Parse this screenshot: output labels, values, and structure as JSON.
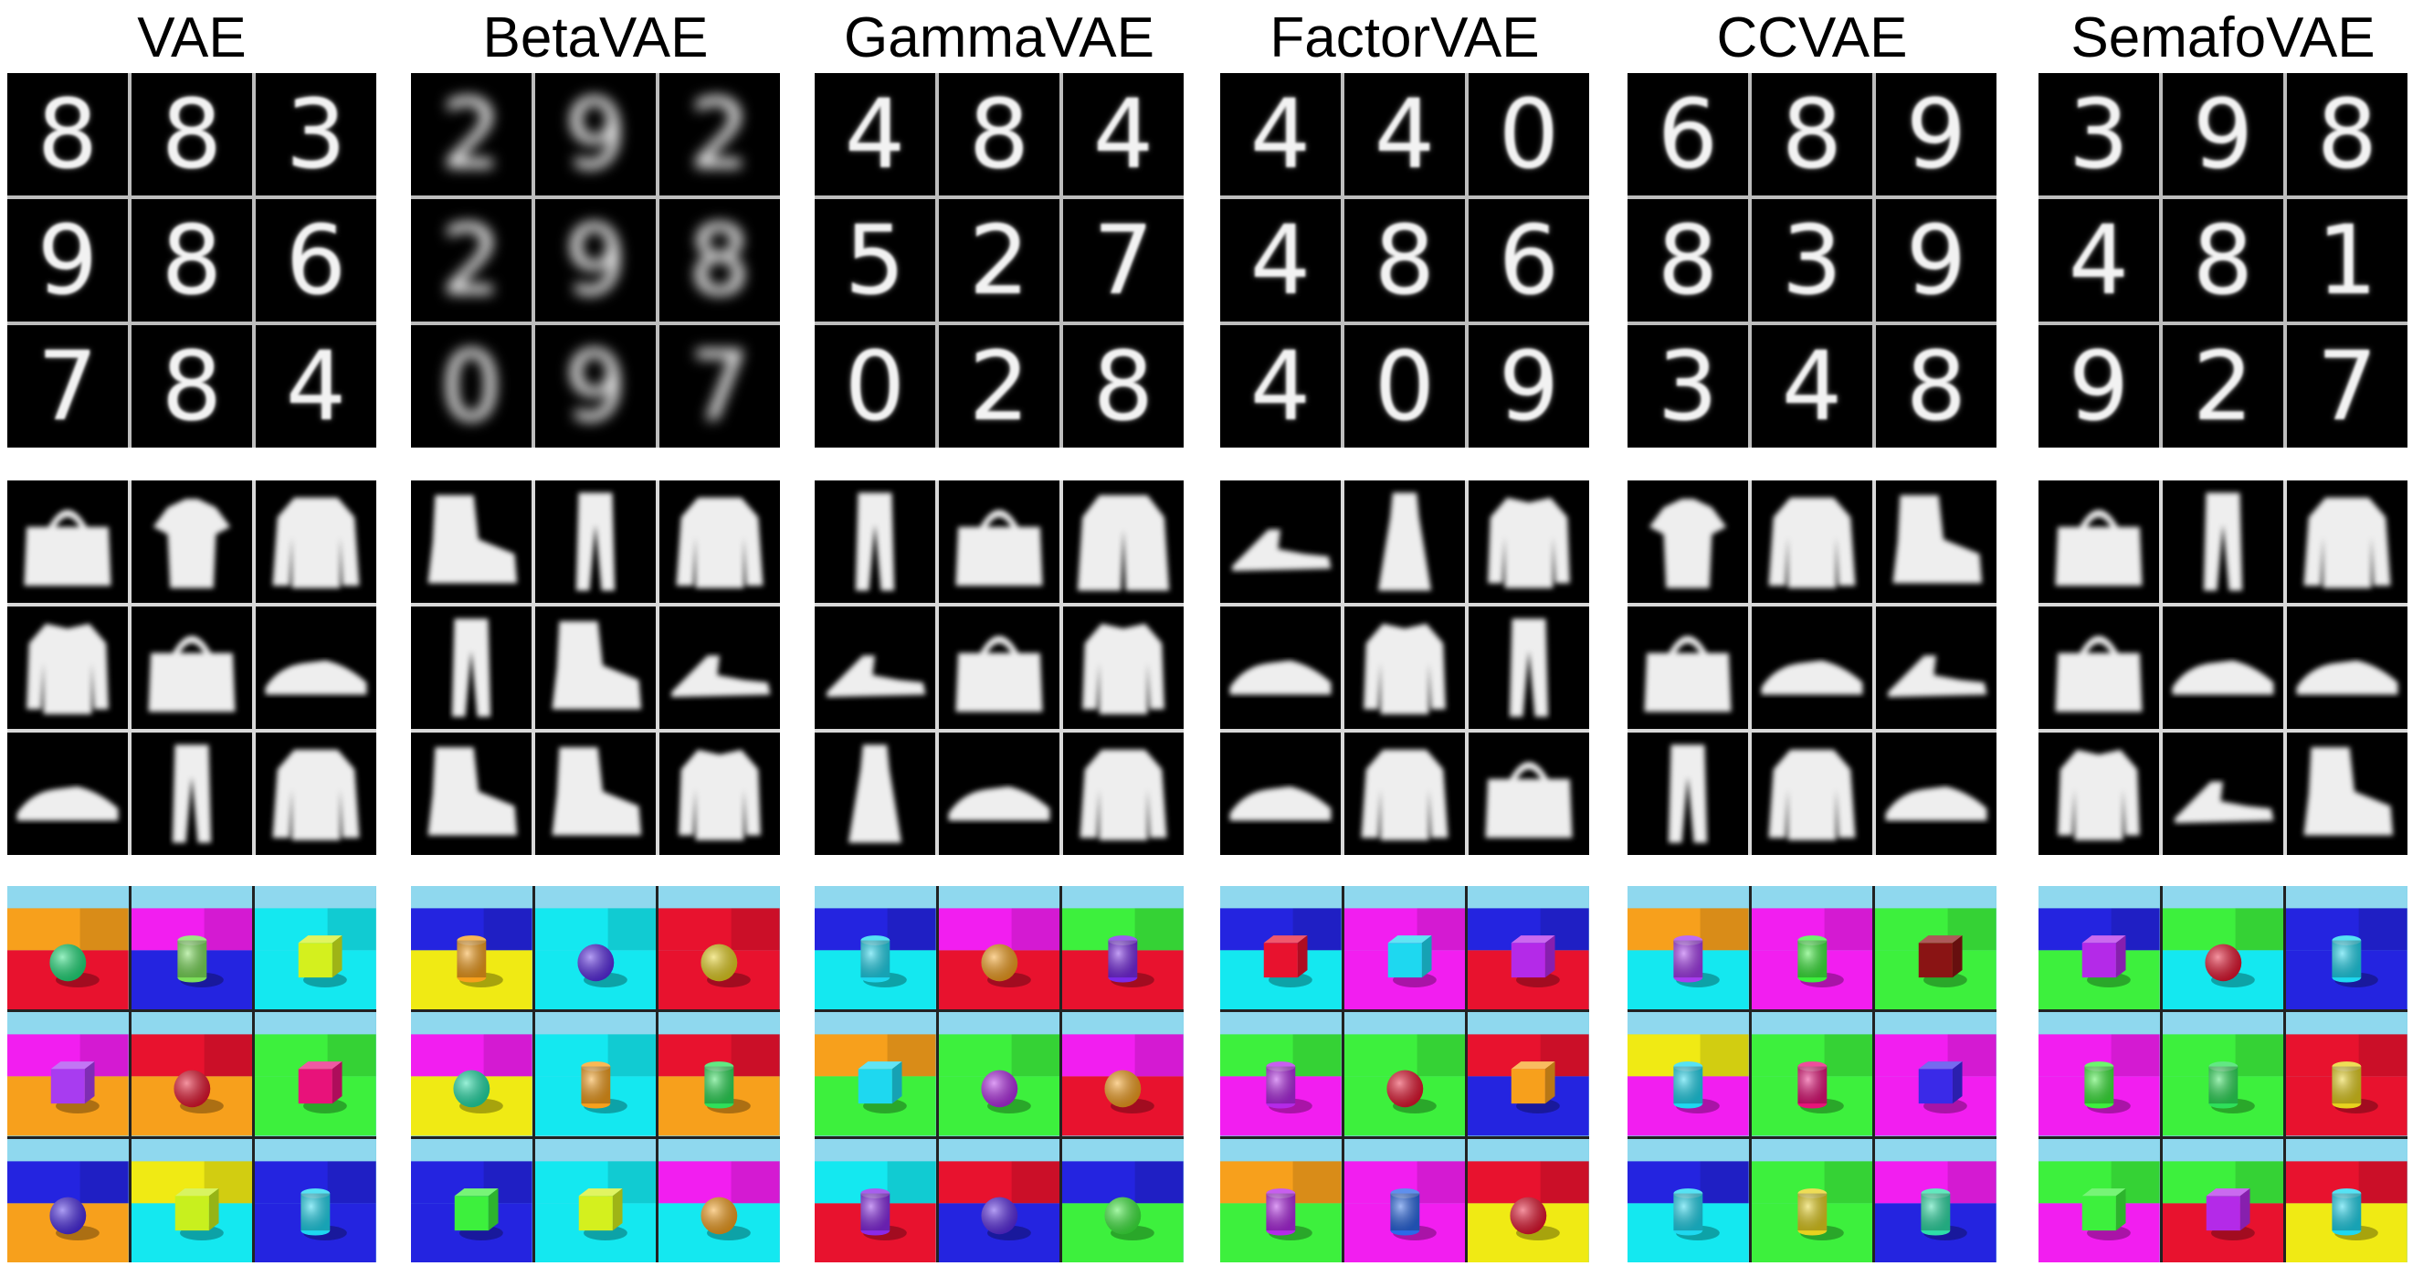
{
  "columns": [
    {
      "title": "VAE",
      "digits": [
        "8",
        "8",
        "3",
        "9",
        "8",
        "6",
        "7",
        "8",
        "4"
      ],
      "fashion": [
        "bag",
        "tshirt",
        "pullover",
        "shirt",
        "bag",
        "sneaker",
        "sneaker",
        "trouser",
        "pullover"
      ],
      "clevr": [
        {
          "wall": "#f7a01c",
          "floor": "#e8122e",
          "obj": "sphere",
          "objColor": "#1ee07a"
        },
        {
          "wall": "#f21ef0",
          "floor": "#2424e0",
          "obj": "cylinder",
          "objColor": "#7de05a"
        },
        {
          "wall": "#14e8f0",
          "floor": "#14e8f0",
          "obj": "cube",
          "objColor": "#d4f01e"
        },
        {
          "wall": "#f21ef0",
          "floor": "#f7a01c",
          "obj": "cube",
          "objColor": "#a83cf0"
        },
        {
          "wall": "#e8122e",
          "floor": "#f7a01c",
          "obj": "sphere",
          "objColor": "#e8122e"
        },
        {
          "wall": "#3df03d",
          "floor": "#3df03d",
          "obj": "cube",
          "objColor": "#e8127a"
        },
        {
          "wall": "#2424e0",
          "floor": "#f7a01c",
          "obj": "sphere",
          "objColor": "#4a2ae8"
        },
        {
          "wall": "#f0ea14",
          "floor": "#14e8f0",
          "obj": "cube",
          "objColor": "#c8f01e"
        },
        {
          "wall": "#2424e0",
          "floor": "#2424e0",
          "obj": "cylinder",
          "objColor": "#1ed8f0"
        }
      ]
    },
    {
      "title": "BetaVAE",
      "digits": [
        "2",
        "9",
        "2",
        "2",
        "9",
        "8",
        "0",
        "9",
        "7"
      ],
      "fashion": [
        "boot",
        "trouser",
        "pullover",
        "trouser",
        "boot",
        "sandal",
        "boot",
        "boot",
        "shirt"
      ],
      "clevr": [
        {
          "wall": "#2424e0",
          "floor": "#f0ea14",
          "obj": "cylinder",
          "objColor": "#f7a01c"
        },
        {
          "wall": "#14e8f0",
          "floor": "#14e8f0",
          "obj": "sphere",
          "objColor": "#5a2ae8"
        },
        {
          "wall": "#e8122e",
          "floor": "#e8122e",
          "obj": "sphere",
          "objColor": "#e8d21e"
        },
        {
          "wall": "#f21ef0",
          "floor": "#f0ea14",
          "obj": "sphere",
          "objColor": "#1ee0a8"
        },
        {
          "wall": "#14e8f0",
          "floor": "#14e8f0",
          "obj": "cylinder",
          "objColor": "#f7a01c"
        },
        {
          "wall": "#e8122e",
          "floor": "#f7a01c",
          "obj": "cylinder",
          "objColor": "#2ee05a"
        },
        {
          "wall": "#2424e0",
          "floor": "#2424e0",
          "obj": "cube",
          "objColor": "#3df03d"
        },
        {
          "wall": "#14e8f0",
          "floor": "#14e8f0",
          "obj": "cube",
          "objColor": "#d4f01e"
        },
        {
          "wall": "#f21ef0",
          "floor": "#14e8f0",
          "obj": "sphere",
          "objColor": "#f7a01c"
        }
      ]
    },
    {
      "title": "GammaVAE",
      "digits": [
        "4",
        "8",
        "4",
        "5",
        "2",
        "7",
        "0",
        "2",
        "8"
      ],
      "fashion": [
        "trouser",
        "bag",
        "coat",
        "sandal",
        "bag",
        "shirt",
        "dress",
        "sneaker",
        "pullover"
      ],
      "clevr": [
        {
          "wall": "#2424e0",
          "floor": "#14e8f0",
          "obj": "cylinder",
          "objColor": "#1ed8f0"
        },
        {
          "wall": "#f21ef0",
          "floor": "#e8122e",
          "obj": "sphere",
          "objColor": "#f7a01c"
        },
        {
          "wall": "#3df03d",
          "floor": "#e8122e",
          "obj": "cylinder",
          "objColor": "#7a2ae8"
        },
        {
          "wall": "#f7a01c",
          "floor": "#3df03d",
          "obj": "cube",
          "objColor": "#1ed8f0"
        },
        {
          "wall": "#3df03d",
          "floor": "#3df03d",
          "obj": "sphere",
          "objColor": "#b42ae8"
        },
        {
          "wall": "#f21ef0",
          "floor": "#e8122e",
          "obj": "sphere",
          "objColor": "#f7a01c"
        },
        {
          "wall": "#14e8f0",
          "floor": "#e8122e",
          "obj": "cylinder",
          "objColor": "#8a2ae8"
        },
        {
          "wall": "#e8122e",
          "floor": "#2424e0",
          "obj": "sphere",
          "objColor": "#5a2ae8"
        },
        {
          "wall": "#2424e0",
          "floor": "#3df03d",
          "obj": "sphere",
          "objColor": "#3df03d"
        }
      ]
    },
    {
      "title": "FactorVAE",
      "digits": [
        "4",
        "4",
        "0",
        "4",
        "8",
        "6",
        "4",
        "0",
        "9"
      ],
      "fashion": [
        "sandal",
        "dress",
        "shirt",
        "sneaker",
        "shirt",
        "trouser",
        "sneaker",
        "pullover",
        "bag"
      ],
      "clevr": [
        {
          "wall": "#2424e0",
          "floor": "#14e8f0",
          "obj": "cube",
          "objColor": "#e8122e"
        },
        {
          "wall": "#f21ef0",
          "floor": "#f21ef0",
          "obj": "cube",
          "objColor": "#1ed8f0"
        },
        {
          "wall": "#2424e0",
          "floor": "#e8122e",
          "obj": "cube",
          "objColor": "#b42ae8"
        },
        {
          "wall": "#3df03d",
          "floor": "#f21ef0",
          "obj": "cylinder",
          "objColor": "#b42ae8"
        },
        {
          "wall": "#3df03d",
          "floor": "#3df03d",
          "obj": "sphere",
          "objColor": "#e8122e"
        },
        {
          "wall": "#e8122e",
          "floor": "#2424e0",
          "obj": "cube",
          "objColor": "#f7a01c"
        },
        {
          "wall": "#f7a01c",
          "floor": "#3df03d",
          "obj": "cylinder",
          "objColor": "#b42ae8"
        },
        {
          "wall": "#f21ef0",
          "floor": "#f21ef0",
          "obj": "cylinder",
          "objColor": "#2a6ae8"
        },
        {
          "wall": "#e8122e",
          "floor": "#f0ea14",
          "obj": "sphere",
          "objColor": "#e8122e"
        }
      ]
    },
    {
      "title": "CCVAE",
      "digits": [
        "6",
        "8",
        "9",
        "8",
        "3",
        "9",
        "3",
        "4",
        "8"
      ],
      "fashion": [
        "tshirt",
        "pullover",
        "boot",
        "bag",
        "sneaker",
        "sandal",
        "trouser",
        "pullover",
        "sneaker"
      ],
      "clevr": [
        {
          "wall": "#f7a01c",
          "floor": "#14e8f0",
          "obj": "cylinder",
          "objColor": "#a83cf0"
        },
        {
          "wall": "#f21ef0",
          "floor": "#f21ef0",
          "obj": "cylinder",
          "objColor": "#3df03d"
        },
        {
          "wall": "#3df03d",
          "floor": "#3df03d",
          "obj": "cube",
          "objColor": "#8a1414"
        },
        {
          "wall": "#f0ea14",
          "floor": "#f21ef0",
          "obj": "cylinder",
          "objColor": "#1ed8f0"
        },
        {
          "wall": "#3df03d",
          "floor": "#3df03d",
          "obj": "cylinder",
          "objColor": "#e8127a"
        },
        {
          "wall": "#f21ef0",
          "floor": "#f21ef0",
          "obj": "cube",
          "objColor": "#3a2ae8"
        },
        {
          "wall": "#2424e0",
          "floor": "#14e8f0",
          "obj": "cylinder",
          "objColor": "#1ed8f0"
        },
        {
          "wall": "#3df03d",
          "floor": "#3df03d",
          "obj": "cylinder",
          "objColor": "#e8d21e"
        },
        {
          "wall": "#f21ef0",
          "floor": "#2424e0",
          "obj": "cylinder",
          "objColor": "#2ee0a8"
        }
      ]
    },
    {
      "title": "SemafoVAE",
      "digits": [
        "3",
        "9",
        "8",
        "4",
        "8",
        "1",
        "9",
        "2",
        "7"
      ],
      "fashion": [
        "bag",
        "trouser",
        "pullover",
        "bag",
        "sneaker",
        "sneaker",
        "shirt",
        "sandal",
        "boot"
      ],
      "clevr": [
        {
          "wall": "#2424e0",
          "floor": "#3df03d",
          "obj": "cube",
          "objColor": "#b42ae8"
        },
        {
          "wall": "#3df03d",
          "floor": "#14e8f0",
          "obj": "sphere",
          "objColor": "#e8122e"
        },
        {
          "wall": "#2424e0",
          "floor": "#2424e0",
          "obj": "cylinder",
          "objColor": "#1ed8f0"
        },
        {
          "wall": "#f21ef0",
          "floor": "#f21ef0",
          "obj": "cylinder",
          "objColor": "#3df03d"
        },
        {
          "wall": "#3df03d",
          "floor": "#3df03d",
          "obj": "cylinder",
          "objColor": "#2ee05a"
        },
        {
          "wall": "#e8122e",
          "floor": "#e8122e",
          "obj": "cylinder",
          "objColor": "#e8d21e"
        },
        {
          "wall": "#3df03d",
          "floor": "#f21ef0",
          "obj": "cube",
          "objColor": "#3df03d"
        },
        {
          "wall": "#3df03d",
          "floor": "#e8122e",
          "obj": "cube",
          "objColor": "#b42ae8"
        },
        {
          "wall": "#e8122e",
          "floor": "#f0ea14",
          "obj": "cylinder",
          "objColor": "#1ed8f0"
        }
      ]
    }
  ]
}
